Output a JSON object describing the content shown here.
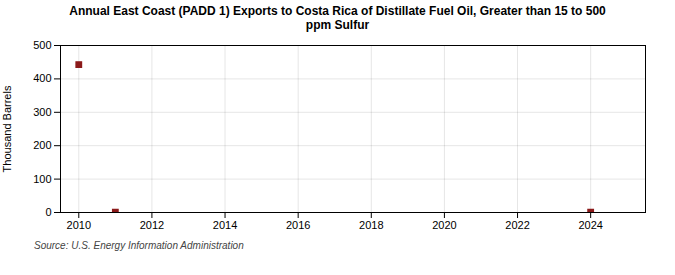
{
  "chart_data": {
    "type": "scatter",
    "title": "Annual East Coast (PADD 1) Exports to Costa Rica of Distillate Fuel Oil, Greater than 15 to 500\nppm Sulfur",
    "ylabel": "Thousand Barrels",
    "source": "Source: U.S. Energy Information Administration",
    "x": [
      2010,
      2011,
      2024
    ],
    "values": [
      443,
      1,
      1
    ],
    "color": "#8b1a1a",
    "marker": "square",
    "xlim": [
      2009.5,
      2025.5
    ],
    "xticks": [
      2010,
      2012,
      2014,
      2016,
      2018,
      2020,
      2022,
      2024
    ],
    "ylim": [
      0,
      500
    ],
    "yticks": [
      0,
      100,
      200,
      300,
      400,
      500
    ],
    "grid": true
  }
}
